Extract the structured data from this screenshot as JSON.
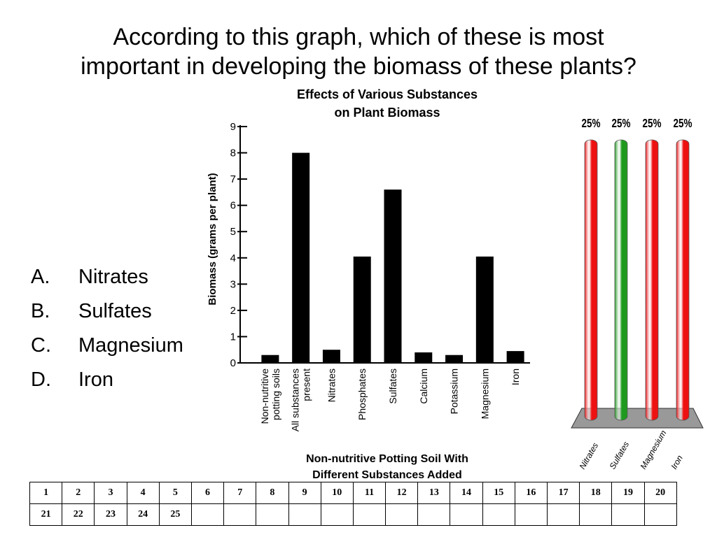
{
  "slide": {
    "title_line1": "According to this graph, which of these is most",
    "title_line2": "important in developing the biomass of these plants?"
  },
  "options": [
    {
      "letter": "A.",
      "text": "Nitrates"
    },
    {
      "letter": "B.",
      "text": "Sulfates"
    },
    {
      "letter": "C.",
      "text": "Magnesium"
    },
    {
      "letter": "D.",
      "text": "Iron"
    }
  ],
  "chart_data": {
    "type": "bar",
    "title_lines": [
      "Effects of Various Substances",
      "on Plant Biomass"
    ],
    "ylabel": "Biomass (grams per plant)",
    "xlabel_lines": [
      "Non-nutritive Potting Soil With",
      "Different Substances Added"
    ],
    "ylim": [
      0,
      9
    ],
    "yticks": [
      0,
      1,
      2,
      3,
      4,
      5,
      6,
      7,
      8,
      9
    ],
    "categories": [
      [
        "Non-nutritive",
        "potting soils"
      ],
      [
        "All substances",
        "present"
      ],
      [
        "Nitrates"
      ],
      [
        "Phosphates"
      ],
      [
        "Sulfates"
      ],
      [
        "Calcium"
      ],
      [
        "Potassium"
      ],
      [
        "Magnesium"
      ],
      [
        "Iron"
      ]
    ],
    "values": [
      0.3,
      8.0,
      0.5,
      4.05,
      6.6,
      0.4,
      0.3,
      4.05,
      0.45
    ],
    "bar_color": "#000000"
  },
  "poll": {
    "type": "bar",
    "categories": [
      "Nitrates",
      "Sulfates",
      "Magnesium",
      "Iron"
    ],
    "values": [
      25,
      25,
      25,
      25
    ],
    "value_labels": [
      "25%",
      "25%",
      "25%",
      "25%"
    ],
    "colors": [
      "#ee1111",
      "#1f9a1f",
      "#ee1111",
      "#ee1111"
    ],
    "base_color": "#999999"
  },
  "response_grid": {
    "row1": [
      "1",
      "2",
      "3",
      "4",
      "5",
      "6",
      "7",
      "8",
      "9",
      "10",
      "11",
      "12",
      "13",
      "14",
      "15",
      "16",
      "17",
      "18",
      "19",
      "20"
    ],
    "row2": [
      "21",
      "22",
      "23",
      "24",
      "25",
      "",
      "",
      "",
      "",
      "",
      "",
      "",
      "",
      "",
      "",
      "",
      "",
      "",
      "",
      ""
    ]
  }
}
